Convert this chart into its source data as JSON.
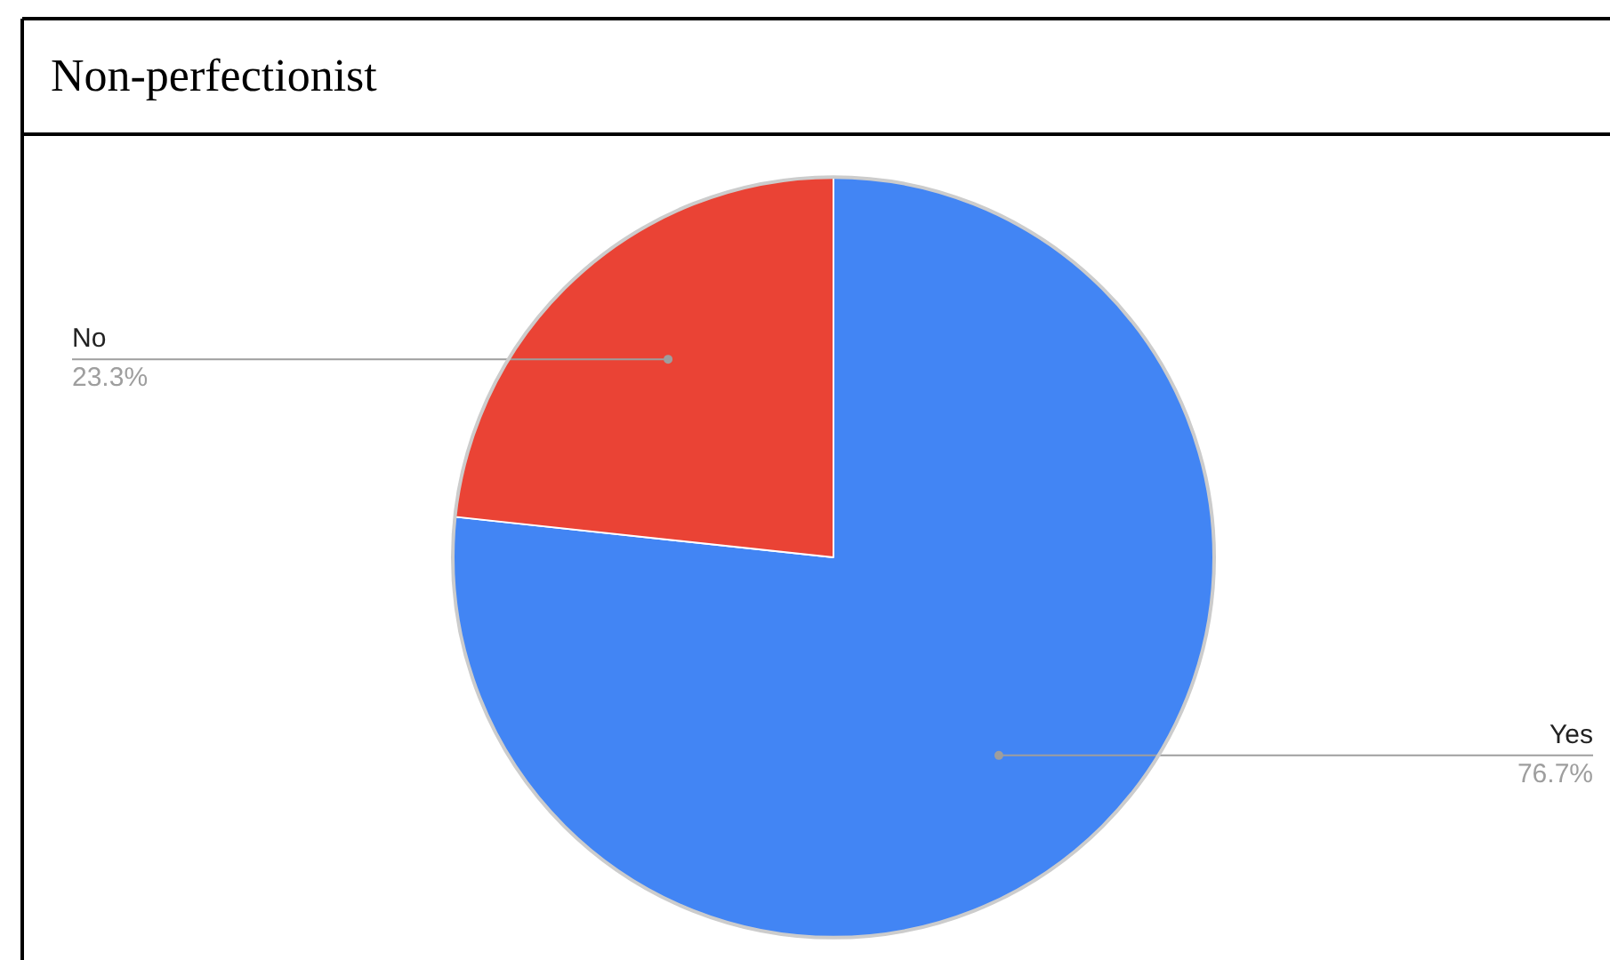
{
  "chart_data": {
    "type": "pie",
    "title": "Non-perfectionist",
    "categories": [
      "Yes",
      "No"
    ],
    "values": [
      76.7,
      23.3
    ],
    "colors": [
      "#4285f4",
      "#ea4335"
    ],
    "data_labels": true,
    "value_labels": [
      "76.7%",
      "23.3%"
    ]
  }
}
